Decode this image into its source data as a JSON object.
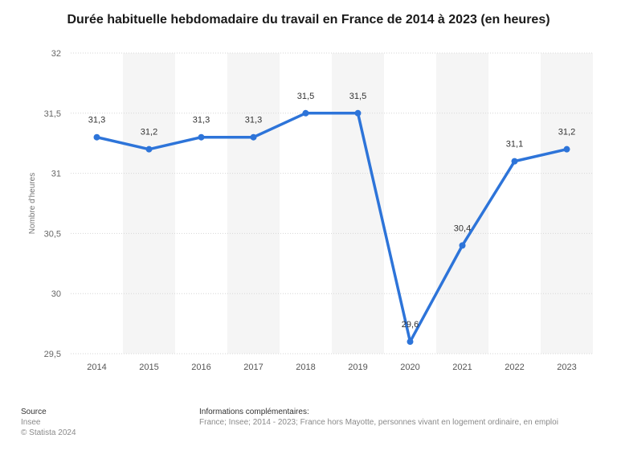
{
  "chart_data": {
    "type": "line",
    "title": "Durée habituelle hebdomadaire du travail en France de 2014 à 2023 (en heures)",
    "xlabel": "",
    "ylabel": "Nombre d'heures",
    "categories": [
      "2014",
      "2015",
      "2016",
      "2017",
      "2018",
      "2019",
      "2020",
      "2021",
      "2022",
      "2023"
    ],
    "series": [
      {
        "values": [
          31.3,
          31.2,
          31.3,
          31.3,
          31.5,
          31.5,
          29.6,
          30.4,
          31.1,
          31.2
        ],
        "value_labels": [
          "31,3",
          "31,2",
          "31,3",
          "31,3",
          "31,5",
          "31,5",
          "29,6",
          "30,4",
          "31,1",
          "31,2"
        ]
      }
    ],
    "ylim": [
      29.5,
      32
    ],
    "yticks": [
      29.5,
      30,
      30.5,
      31,
      31.5,
      32
    ],
    "ytick_labels": [
      "29,5",
      "30",
      "30,5",
      "31",
      "31,5",
      "32"
    ],
    "grid": true,
    "line_color": "#2d74d9"
  },
  "footer": {
    "source_heading": "Source",
    "source_lines": [
      "Insee",
      "© Statista 2024"
    ],
    "info_heading": "Informations complémentaires:",
    "info_text": "France; Insee; 2014 - 2023; France hors Mayotte, personnes vivant en logement ordinaire, en emploi"
  }
}
